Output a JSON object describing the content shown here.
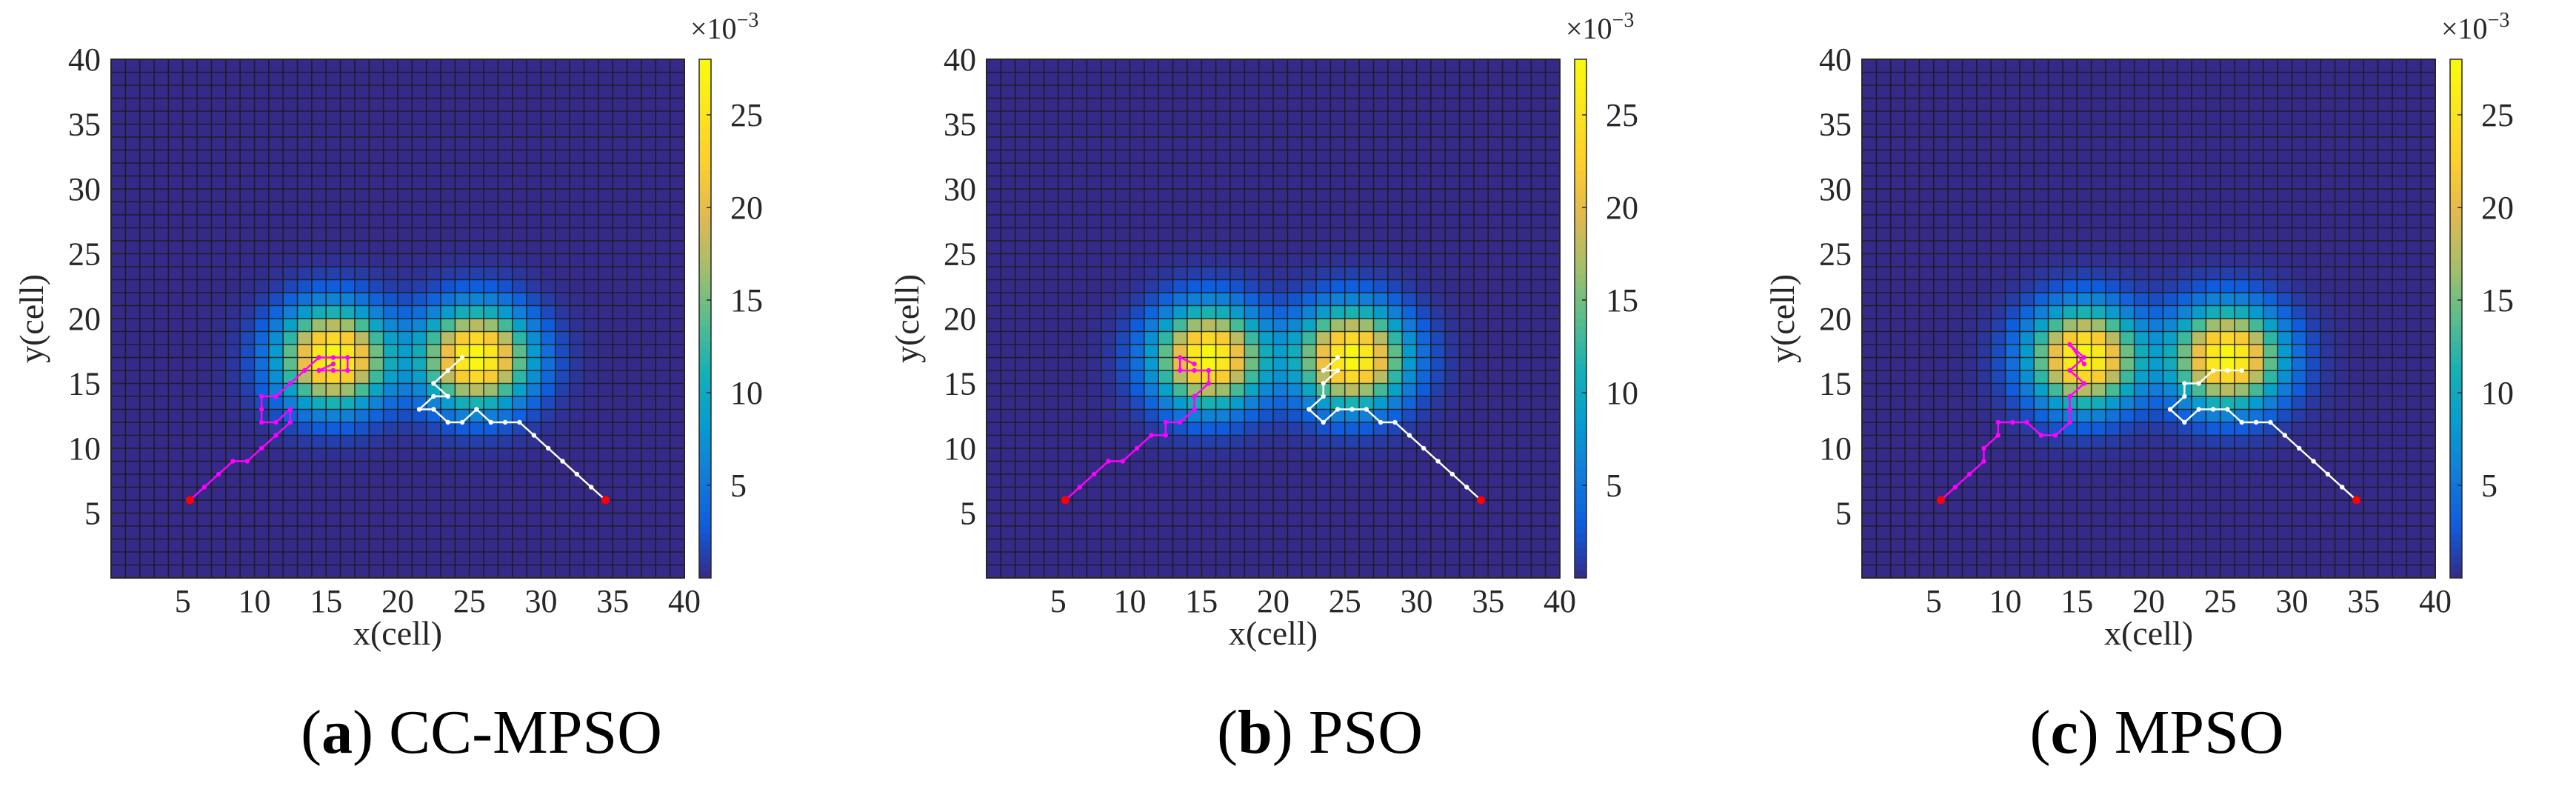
{
  "colors": {
    "background": "#ffffff",
    "grid_line": "#1a1a1a",
    "path_agent1": "#ff00ff",
    "path_agent2": "#ffffff",
    "start_marker": "#ff0000",
    "colormap": "parula"
  },
  "chart_data": [
    {
      "type": "heatmap",
      "panel_label": "a",
      "method": "CC-MPSO",
      "xlabel": "x(cell)",
      "ylabel": "y(cell)",
      "xlim": [
        0,
        40
      ],
      "ylim": [
        0,
        40
      ],
      "xticks": [
        5,
        10,
        15,
        20,
        25,
        30,
        35,
        40
      ],
      "yticks": [
        5,
        10,
        15,
        20,
        25,
        30,
        35,
        40
      ],
      "grid": true,
      "colorbar": {
        "range": [
          0,
          28
        ],
        "ticks": [
          5,
          10,
          15,
          20,
          25
        ],
        "exponent_base": "×10",
        "exponent_power": "−3"
      },
      "targets": [
        {
          "x": 15.5,
          "y": 17,
          "peak": 28
        },
        {
          "x": 25.5,
          "y": 17,
          "peak": 28
        }
      ],
      "paths": [
        {
          "name": "agent-1",
          "color": "magenta",
          "points": [
            [
              5.5,
              6
            ],
            [
              6.5,
              7
            ],
            [
              7.5,
              8
            ],
            [
              8.5,
              9
            ],
            [
              9.5,
              9
            ],
            [
              10.5,
              10
            ],
            [
              11.5,
              11
            ],
            [
              12.5,
              12
            ],
            [
              12.5,
              13
            ],
            [
              11.5,
              12
            ],
            [
              10.5,
              12
            ],
            [
              10.5,
              13
            ],
            [
              10.5,
              14
            ],
            [
              11.5,
              14
            ],
            [
              12.5,
              15
            ],
            [
              13.5,
              16
            ],
            [
              14.5,
              17
            ],
            [
              15.5,
              17
            ],
            [
              16.5,
              17
            ],
            [
              16.5,
              16
            ],
            [
              15.5,
              16
            ],
            [
              14.5,
              16
            ],
            [
              15.5,
              16.5
            ]
          ]
        },
        {
          "name": "agent-2",
          "color": "white",
          "points": [
            [
              34.5,
              6
            ],
            [
              33.5,
              7
            ],
            [
              32.5,
              8
            ],
            [
              31.5,
              9
            ],
            [
              30.5,
              10
            ],
            [
              29.5,
              11
            ],
            [
              28.5,
              12
            ],
            [
              27.5,
              12
            ],
            [
              26.5,
              12
            ],
            [
              25.5,
              13
            ],
            [
              24.5,
              12
            ],
            [
              23.5,
              12
            ],
            [
              22.5,
              13
            ],
            [
              21.5,
              13
            ],
            [
              22.5,
              14
            ],
            [
              23.5,
              14
            ],
            [
              22.5,
              15
            ],
            [
              23.5,
              16
            ],
            [
              24.5,
              17
            ]
          ]
        }
      ]
    },
    {
      "type": "heatmap",
      "panel_label": "b",
      "method": "PSO",
      "xlabel": "x(cell)",
      "ylabel": "y(cell)",
      "xlim": [
        0,
        40
      ],
      "ylim": [
        0,
        40
      ],
      "xticks": [
        5,
        10,
        15,
        20,
        25,
        30,
        35,
        40
      ],
      "yticks": [
        5,
        10,
        15,
        20,
        25,
        30,
        35,
        40
      ],
      "grid": true,
      "colorbar": {
        "range": [
          0,
          28
        ],
        "ticks": [
          5,
          10,
          15,
          20,
          25
        ],
        "exponent_base": "×10",
        "exponent_power": "−3"
      },
      "targets": [
        {
          "x": 15.5,
          "y": 17,
          "peak": 28
        },
        {
          "x": 25.5,
          "y": 17,
          "peak": 28
        }
      ],
      "paths": [
        {
          "name": "agent-1",
          "color": "magenta",
          "points": [
            [
              5.5,
              6
            ],
            [
              6.5,
              7
            ],
            [
              7.5,
              8
            ],
            [
              8.5,
              9
            ],
            [
              9.5,
              9
            ],
            [
              10.5,
              10
            ],
            [
              11.5,
              11
            ],
            [
              12.5,
              11
            ],
            [
              12.5,
              12
            ],
            [
              13.5,
              12
            ],
            [
              14.5,
              13
            ],
            [
              14.5,
              14
            ],
            [
              15.5,
              15
            ],
            [
              15.5,
              16
            ],
            [
              14.5,
              16
            ],
            [
              13.5,
              16
            ],
            [
              13.5,
              17
            ],
            [
              14.5,
              16.5
            ]
          ]
        },
        {
          "name": "agent-2",
          "color": "white",
          "points": [
            [
              34.5,
              6
            ],
            [
              33.5,
              7
            ],
            [
              32.5,
              8
            ],
            [
              31.5,
              9
            ],
            [
              30.5,
              10
            ],
            [
              29.5,
              11
            ],
            [
              28.5,
              12
            ],
            [
              27.5,
              12
            ],
            [
              26.5,
              13
            ],
            [
              25.5,
              13
            ],
            [
              24.5,
              13
            ],
            [
              23.5,
              12
            ],
            [
              22.5,
              13
            ],
            [
              23.5,
              14
            ],
            [
              23.5,
              15
            ],
            [
              24.5,
              16
            ],
            [
              23.5,
              16
            ],
            [
              24.5,
              17
            ]
          ]
        }
      ]
    },
    {
      "type": "heatmap",
      "panel_label": "c",
      "method": "MPSO",
      "xlabel": "x(cell)",
      "ylabel": "y(cell)",
      "xlim": [
        0,
        40
      ],
      "ylim": [
        0,
        40
      ],
      "xticks": [
        5,
        10,
        15,
        20,
        25,
        30,
        35,
        40
      ],
      "yticks": [
        5,
        10,
        15,
        20,
        25,
        30,
        35,
        40
      ],
      "grid": true,
      "colorbar": {
        "range": [
          0,
          28
        ],
        "ticks": [
          5,
          10,
          15,
          20,
          25
        ],
        "exponent_base": "×10",
        "exponent_power": "−3"
      },
      "targets": [
        {
          "x": 15.5,
          "y": 17,
          "peak": 28
        },
        {
          "x": 25.5,
          "y": 17,
          "peak": 28
        }
      ],
      "paths": [
        {
          "name": "agent-1",
          "color": "magenta",
          "points": [
            [
              5.5,
              6
            ],
            [
              6.5,
              7
            ],
            [
              7.5,
              8
            ],
            [
              8.5,
              9
            ],
            [
              8.5,
              10
            ],
            [
              9.5,
              11
            ],
            [
              9.5,
              12
            ],
            [
              10.5,
              12
            ],
            [
              11.5,
              12
            ],
            [
              12.5,
              11
            ],
            [
              13.5,
              11
            ],
            [
              14.5,
              12
            ],
            [
              14.5,
              13
            ],
            [
              14.5,
              14
            ],
            [
              15.5,
              15
            ],
            [
              14.5,
              16
            ],
            [
              15.5,
              17
            ],
            [
              14.5,
              18
            ],
            [
              15.5,
              16.5
            ]
          ]
        },
        {
          "name": "agent-2",
          "color": "white",
          "points": [
            [
              34.5,
              6
            ],
            [
              33.5,
              7
            ],
            [
              32.5,
              8
            ],
            [
              31.5,
              9
            ],
            [
              30.5,
              10
            ],
            [
              29.5,
              11
            ],
            [
              28.5,
              12
            ],
            [
              27.5,
              12
            ],
            [
              26.5,
              12
            ],
            [
              25.5,
              13
            ],
            [
              24.5,
              13
            ],
            [
              23.5,
              13
            ],
            [
              22.5,
              12
            ],
            [
              21.5,
              13
            ],
            [
              22.5,
              14
            ],
            [
              22.5,
              15
            ],
            [
              23.5,
              15
            ],
            [
              24.5,
              16
            ],
            [
              25.5,
              16
            ],
            [
              26.5,
              16
            ]
          ]
        }
      ]
    }
  ]
}
